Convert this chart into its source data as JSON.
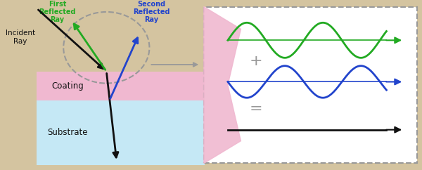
{
  "bg_color": "#d4c4a0",
  "coating_color": "#f0b8d0",
  "substrate_color": "#c5e8f5",
  "panel_bg": "#ffffff",
  "panel_border": "#999999",
  "green_color": "#22aa22",
  "blue_color": "#2244cc",
  "black_color": "#111111",
  "symbol_color": "#999999",
  "left_panel": {
    "coating_label": "Coating",
    "substrate_label": "Substrate",
    "incident_label": "Incident\nRay",
    "first_reflected_label": "First\nReflected\nRay",
    "second_reflected_label": "Second\nReflected\nRay"
  }
}
